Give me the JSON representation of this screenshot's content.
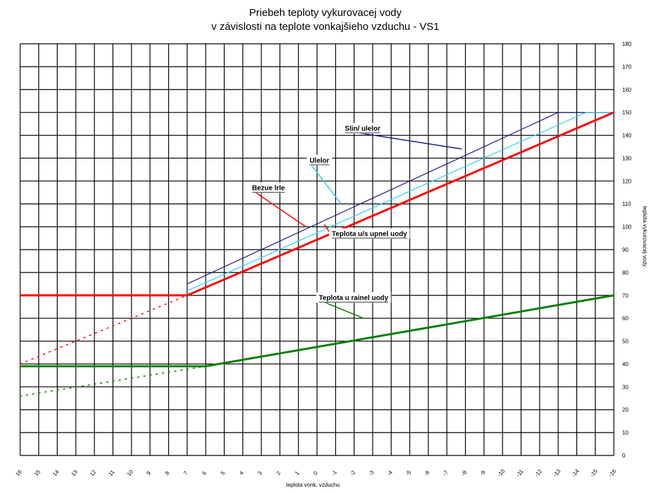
{
  "chart_data": {
    "type": "line",
    "title_lines": [
      "Priebeh teploty vykurovacej vody",
      "v závislosti na teplote vonkajšieho vzduchu - VS1"
    ],
    "xlabel": "teplota vonk. vzduchu",
    "ylabel": "teplota vykurovacej vody",
    "xlim": [
      16,
      -16
    ],
    "ylim": [
      0,
      180
    ],
    "x_ticks": [
      16,
      15,
      14,
      13,
      12,
      11,
      10,
      9,
      8,
      7,
      6,
      5,
      4,
      3,
      2,
      1,
      0,
      -1,
      -2,
      -3,
      -4,
      -5,
      -6,
      -7,
      -8,
      -9,
      -10,
      -11,
      -12,
      -13,
      -14,
      -15,
      -16
    ],
    "y_ticks": [
      0,
      10,
      20,
      30,
      40,
      50,
      60,
      70,
      80,
      90,
      100,
      110,
      120,
      130,
      140,
      150,
      160,
      170,
      180
    ],
    "grid": true,
    "series": [
      {
        "name": "Slin/ ulelor",
        "color": "#1a1a8c",
        "width": 1.2,
        "style": "solid",
        "x": [
          7,
          -13,
          -16
        ],
        "y": [
          75,
          150,
          150
        ]
      },
      {
        "name": "Ulelor",
        "color": "#33ccee",
        "width": 1.2,
        "style": "solid",
        "x": [
          7,
          -14.5,
          -16
        ],
        "y": [
          72,
          150,
          150
        ]
      },
      {
        "name": "Bezue lrle",
        "color": "#ff0000",
        "width": 3,
        "style": "solid",
        "x": [
          16,
          7,
          -16
        ],
        "y": [
          70,
          70,
          150
        ]
      },
      {
        "name": "",
        "color": "#ff0000",
        "width": 1.5,
        "style": "dotted",
        "x": [
          16,
          7
        ],
        "y": [
          40,
          70
        ]
      },
      {
        "name": "Teplota u rainel uody",
        "color": "#008000",
        "width": 3,
        "style": "solid",
        "x": [
          16,
          6,
          -16
        ],
        "y": [
          39,
          39,
          70
        ]
      },
      {
        "name": "",
        "color": "#008000",
        "width": 1.5,
        "style": "dotted",
        "x": [
          16,
          6
        ],
        "y": [
          26,
          39
        ]
      }
    ],
    "annotations": [
      {
        "text": "Slin/ ulelor",
        "color": "#1a1a8c",
        "box_at": [
          -1.5,
          142
        ],
        "point_at": [
          -7.8,
          134
        ]
      },
      {
        "text": "Ulelor",
        "color": "#33ccee",
        "box_at": [
          0.4,
          128
        ],
        "point_at": [
          -1.3,
          110
        ]
      },
      {
        "text": "Bezue lrle",
        "color": "#ff0000",
        "box_at": [
          3.5,
          116
        ],
        "point_at": [
          0.6,
          100
        ]
      },
      {
        "text": "Teplota u/s upnel uody",
        "color": "#ff0000",
        "box_at": [
          -0.8,
          96
        ],
        "point_at": [
          -0.4,
          101
        ]
      },
      {
        "text": "Teplota u rainel uody",
        "color": "#008000",
        "box_at": [
          -0.1,
          68
        ],
        "point_at": [
          -2.5,
          60
        ]
      }
    ]
  }
}
